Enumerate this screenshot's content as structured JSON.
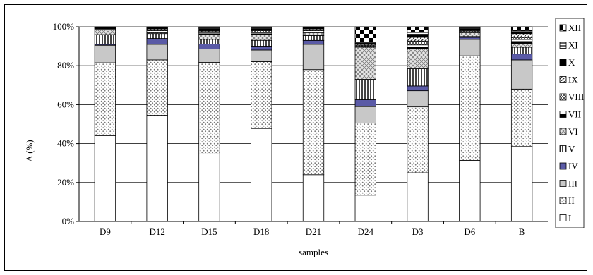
{
  "chart_data": {
    "type": "bar",
    "stacked": true,
    "title": "",
    "xlabel": "samples",
    "ylabel": "A (%)",
    "ylim": [
      0,
      100
    ],
    "ytick_labels": [
      "0%",
      "20%",
      "40%",
      "60%",
      "80%",
      "100%"
    ],
    "grid": true,
    "legend_position": "right",
    "categories": [
      "D9",
      "D12",
      "D15",
      "D18",
      "D21",
      "D24",
      "D3",
      "D6",
      "B"
    ],
    "series": [
      {
        "name": "I",
        "pattern": "white",
        "values": [
          44,
          54.5,
          35,
          48,
          24,
          13.5,
          25.5,
          31.5,
          38.5
        ]
      },
      {
        "name": "II",
        "pattern": "dots",
        "values": [
          37.5,
          28.5,
          47.5,
          34.5,
          54,
          37,
          34.5,
          54,
          29.5
        ]
      },
      {
        "name": "III",
        "pattern": "lightgray",
        "values": [
          9,
          8,
          7,
          6,
          13,
          8.5,
          8.5,
          8.5,
          15
        ]
      },
      {
        "name": "IV",
        "pattern": "blue",
        "values": [
          0.5,
          3,
          2.5,
          2,
          2,
          3.5,
          2.5,
          1,
          3
        ]
      },
      {
        "name": "V",
        "pattern": "vstripes",
        "values": [
          5,
          2.5,
          2.5,
          3,
          2.5,
          10.5,
          9,
          0.5,
          3.5
        ]
      },
      {
        "name": "VI",
        "pattern": "crosshatch",
        "values": [
          2.5,
          0.5,
          2.5,
          3,
          1.5,
          16.5,
          10.5,
          2,
          2
        ]
      },
      {
        "name": "VII",
        "pattern": "halfblack",
        "values": [
          0.5,
          1,
          1,
          1,
          1,
          0.5,
          2,
          0.5,
          2
        ]
      },
      {
        "name": "VIII",
        "pattern": "smallchecker",
        "values": [
          0.3,
          0.5,
          0.5,
          1,
          0.5,
          0.5,
          2,
          0.5,
          1
        ]
      },
      {
        "name": "IX",
        "pattern": "diag",
        "values": [
          0.2,
          0.5,
          0.5,
          0.5,
          0.5,
          0.5,
          2,
          0.5,
          2
        ]
      },
      {
        "name": "X",
        "pattern": "black",
        "values": [
          0.2,
          0.5,
          1,
          0.5,
          0.5,
          0.5,
          1.5,
          0.5,
          0.5
        ]
      },
      {
        "name": "XI",
        "pattern": "hstripes",
        "values": [
          0.2,
          0.3,
          0.5,
          0.5,
          0.3,
          0.5,
          1,
          0.5,
          1
        ]
      },
      {
        "name": "XII",
        "pattern": "bigchecker",
        "values": [
          0.1,
          0.2,
          0.5,
          0.5,
          0.2,
          8,
          3,
          0.5,
          2
        ]
      }
    ]
  }
}
